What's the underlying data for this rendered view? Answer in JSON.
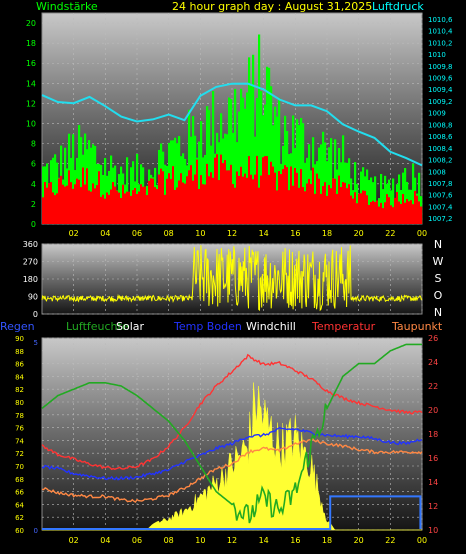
{
  "header": {
    "left": "Windstärke",
    "title": "24 hour graph day : August 31,2025",
    "right": "Luftdruck"
  },
  "chart_data": [
    {
      "type": "bar",
      "name": "wind",
      "left_axis": {
        "min": 0,
        "max": 21,
        "ticks": [
          "0",
          "2",
          "4",
          "6",
          "8",
          "10",
          "12",
          "14",
          "16",
          "18",
          "20"
        ],
        "color": "#00ff00"
      },
      "right_axis": {
        "min": 1007.1,
        "max": 1010.7,
        "ticks": [
          "1007,2",
          "1007,4",
          "1007,6",
          "1007,8",
          "1008",
          "1008,2",
          "1008,4",
          "1008,6",
          "1008,8",
          "1009",
          "1009,2",
          "1009,4",
          "1009,6",
          "1009,8",
          "1010",
          "1010,2",
          "1010,4",
          "1010,6"
        ],
        "color": "#00ffff"
      },
      "x_ticks": [
        "02",
        "04",
        "06",
        "08",
        "10",
        "12",
        "14",
        "16",
        "18",
        "20",
        "22",
        "00"
      ],
      "gust_color": "#00ff00",
      "speed_color": "#ff0000",
      "pressure_color": "#22ddee",
      "pressure": [
        [
          0,
          1009.3
        ],
        [
          1,
          1009.2
        ],
        [
          2,
          1009.15
        ],
        [
          3,
          1009.25
        ],
        [
          4,
          1009.1
        ],
        [
          5,
          1008.95
        ],
        [
          6,
          1008.85
        ],
        [
          7,
          1008.9
        ],
        [
          8,
          1008.95
        ],
        [
          9,
          1008.9
        ],
        [
          10,
          1009.3
        ],
        [
          11,
          1009.45
        ],
        [
          12,
          1009.5
        ],
        [
          13,
          1009.5
        ],
        [
          14,
          1009.4
        ],
        [
          15,
          1009.25
        ],
        [
          16,
          1009.15
        ],
        [
          17,
          1009.1
        ],
        [
          18,
          1009.05
        ],
        [
          19,
          1008.8
        ],
        [
          20,
          1008.65
        ],
        [
          21,
          1008.55
        ],
        [
          22,
          1008.35
        ],
        [
          23,
          1008.25
        ],
        [
          24,
          1008.1
        ]
      ],
      "gust_envelope": [
        [
          0,
          7
        ],
        [
          1,
          8
        ],
        [
          2,
          10
        ],
        [
          3,
          10
        ],
        [
          4,
          8
        ],
        [
          5,
          7
        ],
        [
          6,
          7
        ],
        [
          7,
          8
        ],
        [
          8,
          10
        ],
        [
          9,
          11
        ],
        [
          10,
          13
        ],
        [
          11,
          14
        ],
        [
          12,
          15
        ],
        [
          13,
          17
        ],
        [
          14,
          20
        ],
        [
          15,
          13
        ],
        [
          16,
          12
        ],
        [
          17,
          11
        ],
        [
          18,
          10
        ],
        [
          19,
          9
        ],
        [
          20,
          6
        ],
        [
          21,
          5
        ],
        [
          22,
          5
        ],
        [
          23,
          7
        ],
        [
          24,
          6
        ]
      ],
      "speed_envelope": [
        [
          0,
          4
        ],
        [
          1,
          5
        ],
        [
          2,
          6
        ],
        [
          3,
          6
        ],
        [
          4,
          5
        ],
        [
          5,
          4
        ],
        [
          6,
          4
        ],
        [
          7,
          5
        ],
        [
          8,
          6
        ],
        [
          9,
          6
        ],
        [
          10,
          7
        ],
        [
          11,
          7
        ],
        [
          12,
          7
        ],
        [
          13,
          7
        ],
        [
          14,
          7
        ],
        [
          15,
          6
        ],
        [
          16,
          6
        ],
        [
          17,
          6
        ],
        [
          18,
          5
        ],
        [
          19,
          5
        ],
        [
          20,
          4
        ],
        [
          21,
          3
        ],
        [
          22,
          3
        ],
        [
          23,
          4
        ],
        [
          24,
          3
        ]
      ]
    },
    {
      "type": "scatter",
      "name": "wind-direction",
      "left_axis": {
        "min": 0,
        "max": 360,
        "ticks": [
          "0",
          "90",
          "180",
          "270",
          "360"
        ],
        "color": "#ffffff"
      },
      "compass": [
        "N",
        "W",
        "S",
        "O",
        "N"
      ],
      "series_color": "#ffff00",
      "calm_level": 80,
      "active_range": [
        9.5,
        19.5
      ]
    },
    {
      "type": "line",
      "name": "climate",
      "legend": [
        {
          "label": "Regen",
          "color": "#3355ff"
        },
        {
          "label": "Luftfeuchte",
          "color": "#22aa22"
        },
        {
          "label": "Solar",
          "color": "#ffffff"
        },
        {
          "label": "Temp Boden",
          "color": "#2233ff"
        },
        {
          "label": "Windchill",
          "color": "#ffffff"
        },
        {
          "label": "Temperatur",
          "color": "#ff3333"
        },
        {
          "label": "Taupunkt",
          "color": "#ff8844"
        }
      ],
      "left_axis": {
        "min": 60,
        "max": 90,
        "ticks": [
          "60",
          "62",
          "64",
          "66",
          "68",
          "70",
          "72",
          "74",
          "76",
          "78",
          "80",
          "82",
          "84",
          "86",
          "88",
          "90"
        ],
        "color": "#ffff00"
      },
      "right_axis": {
        "min": 10,
        "max": 26,
        "ticks": [
          "10",
          "12",
          "14",
          "16",
          "18",
          "20",
          "22",
          "24",
          "26"
        ],
        "color": "#ff4444"
      },
      "rain_axis": {
        "ticks": [
          "0",
          "5"
        ]
      },
      "x_ticks": [
        "02",
        "04",
        "06",
        "08",
        "10",
        "12",
        "14",
        "16",
        "18",
        "20",
        "22",
        "00"
      ],
      "series": [
        {
          "name": "Temperatur",
          "color": "#ff3333",
          "axis": "right",
          "points": [
            [
              0,
              17
            ],
            [
              1,
              16.3
            ],
            [
              2,
              15.9
            ],
            [
              3,
              15.5
            ],
            [
              4,
              15.2
            ],
            [
              5,
              15.1
            ],
            [
              6,
              15.3
            ],
            [
              7,
              15.9
            ],
            [
              8,
              17
            ],
            [
              9,
              18.5
            ],
            [
              10,
              20.5
            ],
            [
              11,
              22
            ],
            [
              12,
              23.2
            ],
            [
              13,
              24.5
            ],
            [
              14,
              23.8
            ],
            [
              15,
              23.9
            ],
            [
              16,
              23.3
            ],
            [
              17,
              22.6
            ],
            [
              18,
              21.6
            ],
            [
              19,
              21
            ],
            [
              20,
              20.6
            ],
            [
              21,
              20.3
            ],
            [
              22,
              20
            ],
            [
              23,
              19.8
            ],
            [
              24,
              19.8
            ]
          ]
        },
        {
          "name": "Temp Boden",
          "color": "#2233ff",
          "axis": "right",
          "points": [
            [
              0,
              15.3
            ],
            [
              1,
              15.1
            ],
            [
              2,
              14.7
            ],
            [
              3,
              14.5
            ],
            [
              4,
              14.3
            ],
            [
              5,
              14.3
            ],
            [
              6,
              14.4
            ],
            [
              7,
              14.7
            ],
            [
              8,
              15
            ],
            [
              9,
              15.7
            ],
            [
              10,
              16.2
            ],
            [
              11,
              16.8
            ],
            [
              12,
              17.2
            ],
            [
              13,
              17.8
            ],
            [
              14,
              17.9
            ],
            [
              15,
              18.4
            ],
            [
              16,
              18.4
            ],
            [
              17,
              18.1
            ],
            [
              18,
              17.9
            ],
            [
              19,
              17.8
            ],
            [
              20,
              17.8
            ],
            [
              21,
              17.6
            ],
            [
              22,
              17.3
            ],
            [
              23,
              17.2
            ],
            [
              24,
              17.6
            ]
          ]
        },
        {
          "name": "Taupunkt",
          "color": "#ff8844",
          "axis": "right",
          "points": [
            [
              0,
              13.5
            ],
            [
              1,
              13.1
            ],
            [
              2,
              12.9
            ],
            [
              3,
              12.8
            ],
            [
              4,
              12.8
            ],
            [
              5,
              12.5
            ],
            [
              6,
              12.4
            ],
            [
              7,
              12.6
            ],
            [
              8,
              12.9
            ],
            [
              9,
              13.5
            ],
            [
              10,
              14.3
            ],
            [
              11,
              15.1
            ],
            [
              12,
              15.5
            ],
            [
              13,
              16.5
            ],
            [
              14,
              16.8
            ],
            [
              15,
              16.6
            ],
            [
              16,
              17.2
            ],
            [
              17,
              17.5
            ],
            [
              18,
              17.2
            ],
            [
              19,
              17
            ],
            [
              20,
              16.7
            ],
            [
              21,
              16.5
            ],
            [
              22,
              16.5
            ],
            [
              23,
              16.5
            ],
            [
              24,
              16.5
            ]
          ]
        },
        {
          "name": "Luftfeuchte",
          "color": "#22aa22",
          "axis": "left",
          "points": [
            [
              0,
              79
            ],
            [
              1,
              81
            ],
            [
              2,
              82
            ],
            [
              3,
              83
            ],
            [
              4,
              83
            ],
            [
              5,
              82.5
            ],
            [
              6,
              81
            ],
            [
              7,
              79
            ],
            [
              8,
              77
            ],
            [
              9,
              74
            ],
            [
              10,
              70
            ],
            [
              11,
              66
            ],
            [
              12,
              64
            ],
            [
              13,
              62
            ],
            [
              14,
              65
            ],
            [
              15,
              63
            ],
            [
              16,
              66
            ],
            [
              17,
              73
            ],
            [
              18,
              79
            ],
            [
              19,
              84
            ],
            [
              20,
              86
            ],
            [
              21,
              86
            ],
            [
              22,
              88
            ],
            [
              23,
              89
            ],
            [
              24,
              89
            ]
          ]
        }
      ],
      "solar": [
        [
          0,
          0
        ],
        [
          6.6,
          0
        ],
        [
          7,
          0.5
        ],
        [
          8,
          1.2
        ],
        [
          9,
          2
        ],
        [
          10,
          3.5
        ],
        [
          11,
          5
        ],
        [
          12,
          7
        ],
        [
          13,
          9
        ],
        [
          13.5,
          14
        ],
        [
          14,
          12
        ],
        [
          15,
          9
        ],
        [
          16,
          10
        ],
        [
          17,
          7
        ],
        [
          17.5,
          4
        ],
        [
          18,
          1
        ],
        [
          18.5,
          0
        ],
        [
          24,
          0
        ]
      ],
      "rain_steps": [
        [
          0,
          0
        ],
        [
          18.2,
          0
        ],
        [
          18.2,
          1
        ],
        [
          23.9,
          1
        ],
        [
          23.9,
          0
        ]
      ]
    }
  ]
}
